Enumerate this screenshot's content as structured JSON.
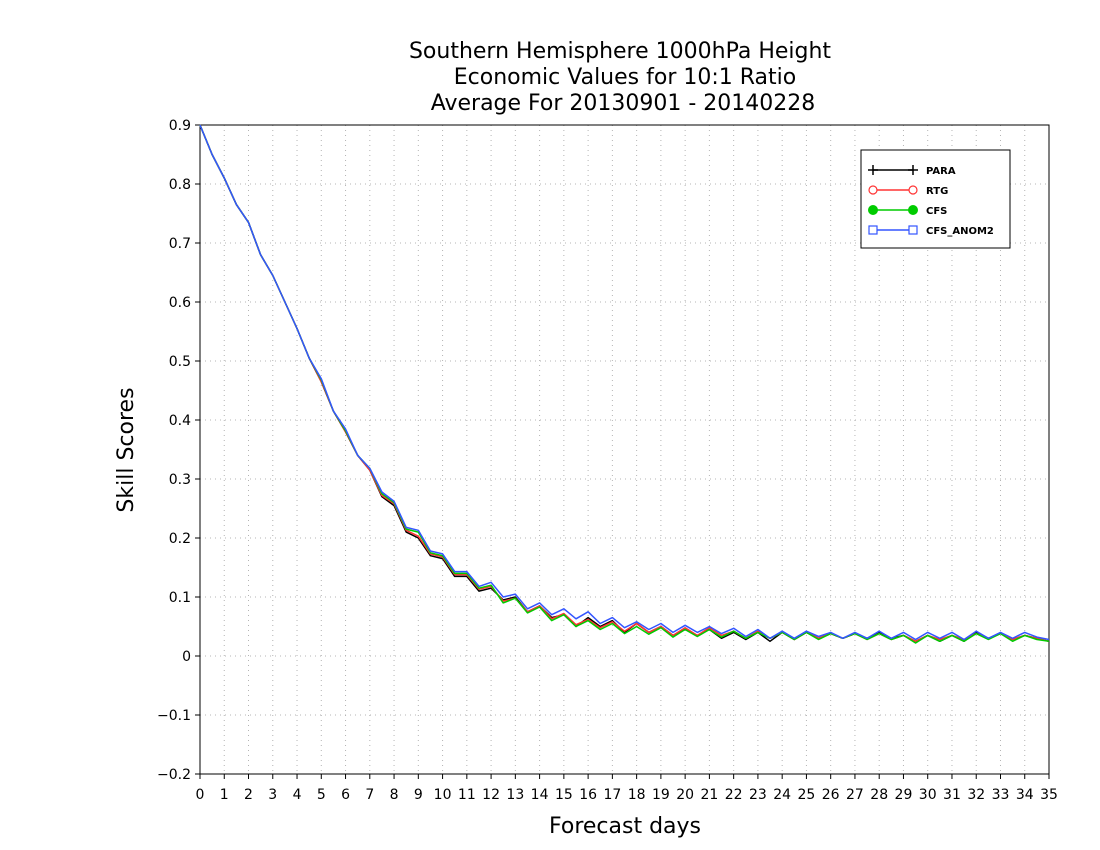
{
  "chart_data": {
    "type": "line",
    "title_lines": [
      "Southern Hemisphere 1000hPa Height",
      "Economic Values for 10:1 Ratio",
      "Average For 20130901 - 20140228"
    ],
    "xlabel": "Forecast days",
    "ylabel": "Skill Scores",
    "xlim": [
      0,
      35
    ],
    "ylim": [
      -0.2,
      0.9
    ],
    "x_ticks": [
      0,
      1,
      2,
      3,
      4,
      5,
      6,
      7,
      8,
      9,
      10,
      11,
      12,
      13,
      14,
      15,
      16,
      17,
      18,
      19,
      20,
      21,
      22,
      23,
      24,
      25,
      26,
      27,
      28,
      29,
      30,
      31,
      32,
      33,
      34,
      35
    ],
    "y_ticks": [
      -0.2,
      -0.1,
      0,
      0.1,
      0.2,
      0.3,
      0.4,
      0.5,
      0.6,
      0.7,
      0.8,
      0.9
    ],
    "y_tick_labels": [
      "−0.2",
      "−0.1",
      "0",
      "0.1",
      "0.2",
      "0.3",
      "0.4",
      "0.5",
      "0.6",
      "0.7",
      "0.8",
      "0.9"
    ],
    "grid": true,
    "legend_position": "top-right",
    "x": [
      0,
      0.5,
      1,
      1.5,
      2,
      2.5,
      3,
      3.5,
      4,
      4.5,
      5,
      5.5,
      6,
      6.5,
      7,
      7.5,
      8,
      8.5,
      9,
      9.5,
      10,
      10.5,
      11,
      11.5,
      12,
      12.5,
      13,
      13.5,
      14,
      14.5,
      15,
      15.5,
      16,
      16.5,
      17,
      17.5,
      18,
      18.5,
      19,
      19.5,
      20,
      20.5,
      21,
      21.5,
      22,
      22.5,
      23,
      23.5,
      24,
      24.5,
      25,
      25.5,
      26,
      26.5,
      27,
      27.5,
      28,
      28.5,
      29,
      29.5,
      30,
      30.5,
      31,
      31.5,
      32,
      32.5,
      33,
      33.5,
      34,
      34.5,
      35
    ],
    "series": [
      {
        "name": "PARA",
        "color": "#000000",
        "marker": "plus",
        "values": [
          0.9,
          0.85,
          0.81,
          0.765,
          0.735,
          0.68,
          0.645,
          0.6,
          0.555,
          0.505,
          0.465,
          0.415,
          0.38,
          0.34,
          0.315,
          0.27,
          0.255,
          0.21,
          0.2,
          0.17,
          0.165,
          0.135,
          0.135,
          0.11,
          0.115,
          0.095,
          0.1,
          0.075,
          0.085,
          0.065,
          0.07,
          0.05,
          0.065,
          0.05,
          0.06,
          0.04,
          0.055,
          0.04,
          0.05,
          0.035,
          0.045,
          0.035,
          0.045,
          0.03,
          0.04,
          0.028,
          0.04,
          0.025,
          0.04,
          0.028,
          0.04,
          0.03,
          0.038,
          0.03,
          0.038,
          0.03,
          0.04,
          0.03,
          0.035,
          0.025,
          0.035,
          0.025,
          0.035,
          0.025,
          0.04,
          0.03,
          0.038,
          0.028,
          0.035,
          0.03,
          0.025
        ]
      },
      {
        "name": "RTG",
        "color": "#ff3333",
        "marker": "circle-open",
        "values": [
          0.9,
          0.85,
          0.81,
          0.765,
          0.735,
          0.68,
          0.645,
          0.6,
          0.555,
          0.505,
          0.465,
          0.415,
          0.38,
          0.34,
          0.315,
          0.272,
          0.258,
          0.213,
          0.203,
          0.173,
          0.168,
          0.138,
          0.138,
          0.113,
          0.118,
          0.093,
          0.098,
          0.075,
          0.085,
          0.063,
          0.072,
          0.053,
          0.062,
          0.048,
          0.058,
          0.042,
          0.055,
          0.04,
          0.05,
          0.035,
          0.048,
          0.035,
          0.048,
          0.035,
          0.042,
          0.03,
          0.042,
          0.03,
          0.04,
          0.028,
          0.04,
          0.03,
          0.038,
          0.03,
          0.038,
          0.028,
          0.038,
          0.028,
          0.035,
          0.025,
          0.035,
          0.028,
          0.035,
          0.028,
          0.038,
          0.03,
          0.038,
          0.028,
          0.035,
          0.03,
          0.025
        ]
      },
      {
        "name": "CFS",
        "color": "#00cc00",
        "marker": "circle-filled",
        "values": [
          0.9,
          0.85,
          0.81,
          0.765,
          0.735,
          0.68,
          0.645,
          0.6,
          0.555,
          0.505,
          0.468,
          0.415,
          0.382,
          0.34,
          0.318,
          0.275,
          0.26,
          0.215,
          0.21,
          0.175,
          0.17,
          0.14,
          0.14,
          0.115,
          0.12,
          0.09,
          0.098,
          0.073,
          0.083,
          0.06,
          0.07,
          0.05,
          0.06,
          0.045,
          0.055,
          0.038,
          0.05,
          0.037,
          0.048,
          0.032,
          0.045,
          0.033,
          0.045,
          0.032,
          0.042,
          0.03,
          0.04,
          0.03,
          0.04,
          0.028,
          0.04,
          0.028,
          0.038,
          0.03,
          0.038,
          0.028,
          0.038,
          0.028,
          0.035,
          0.022,
          0.035,
          0.025,
          0.035,
          0.025,
          0.038,
          0.028,
          0.038,
          0.025,
          0.035,
          0.028,
          0.025
        ]
      },
      {
        "name": "CFS_ANOM2",
        "color": "#3355ff",
        "marker": "square-open",
        "values": [
          0.9,
          0.85,
          0.81,
          0.765,
          0.735,
          0.68,
          0.645,
          0.6,
          0.555,
          0.505,
          0.47,
          0.415,
          0.385,
          0.34,
          0.318,
          0.278,
          0.262,
          0.218,
          0.213,
          0.178,
          0.173,
          0.143,
          0.143,
          0.118,
          0.125,
          0.1,
          0.105,
          0.08,
          0.09,
          0.07,
          0.08,
          0.063,
          0.075,
          0.055,
          0.065,
          0.048,
          0.058,
          0.045,
          0.055,
          0.04,
          0.052,
          0.04,
          0.05,
          0.038,
          0.047,
          0.033,
          0.045,
          0.03,
          0.042,
          0.03,
          0.042,
          0.033,
          0.04,
          0.03,
          0.04,
          0.03,
          0.042,
          0.03,
          0.04,
          0.028,
          0.04,
          0.03,
          0.04,
          0.028,
          0.042,
          0.03,
          0.04,
          0.03,
          0.04,
          0.032,
          0.028
        ]
      }
    ]
  }
}
